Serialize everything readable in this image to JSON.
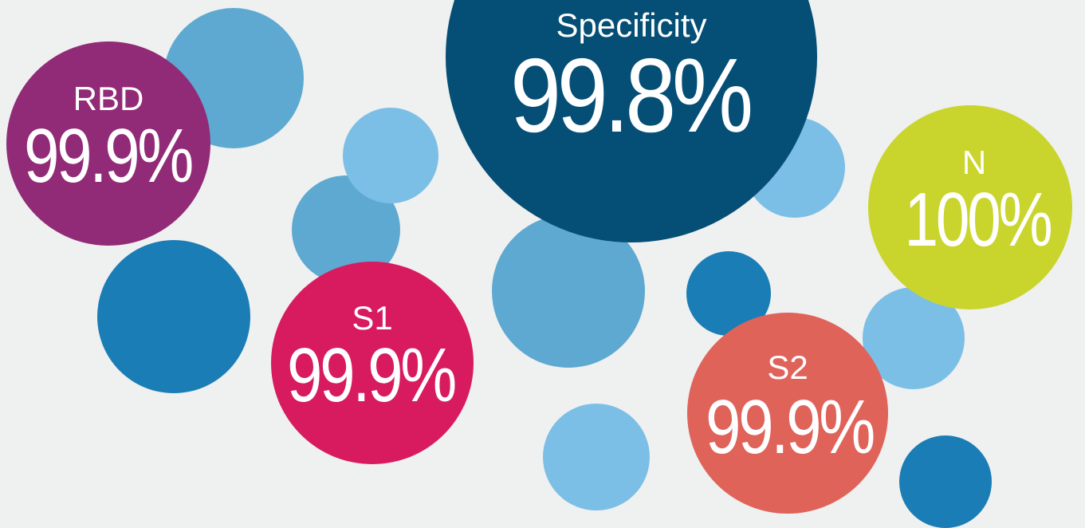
{
  "bubbles": [
    {
      "label": "Specificity",
      "value": "99.8%"
    },
    {
      "label": "RBD",
      "value": "99.9%"
    },
    {
      "label": "S1",
      "value": "99.9%"
    },
    {
      "label": "S2",
      "value": "99.9%"
    },
    {
      "label": "N",
      "value": "100%"
    }
  ]
}
